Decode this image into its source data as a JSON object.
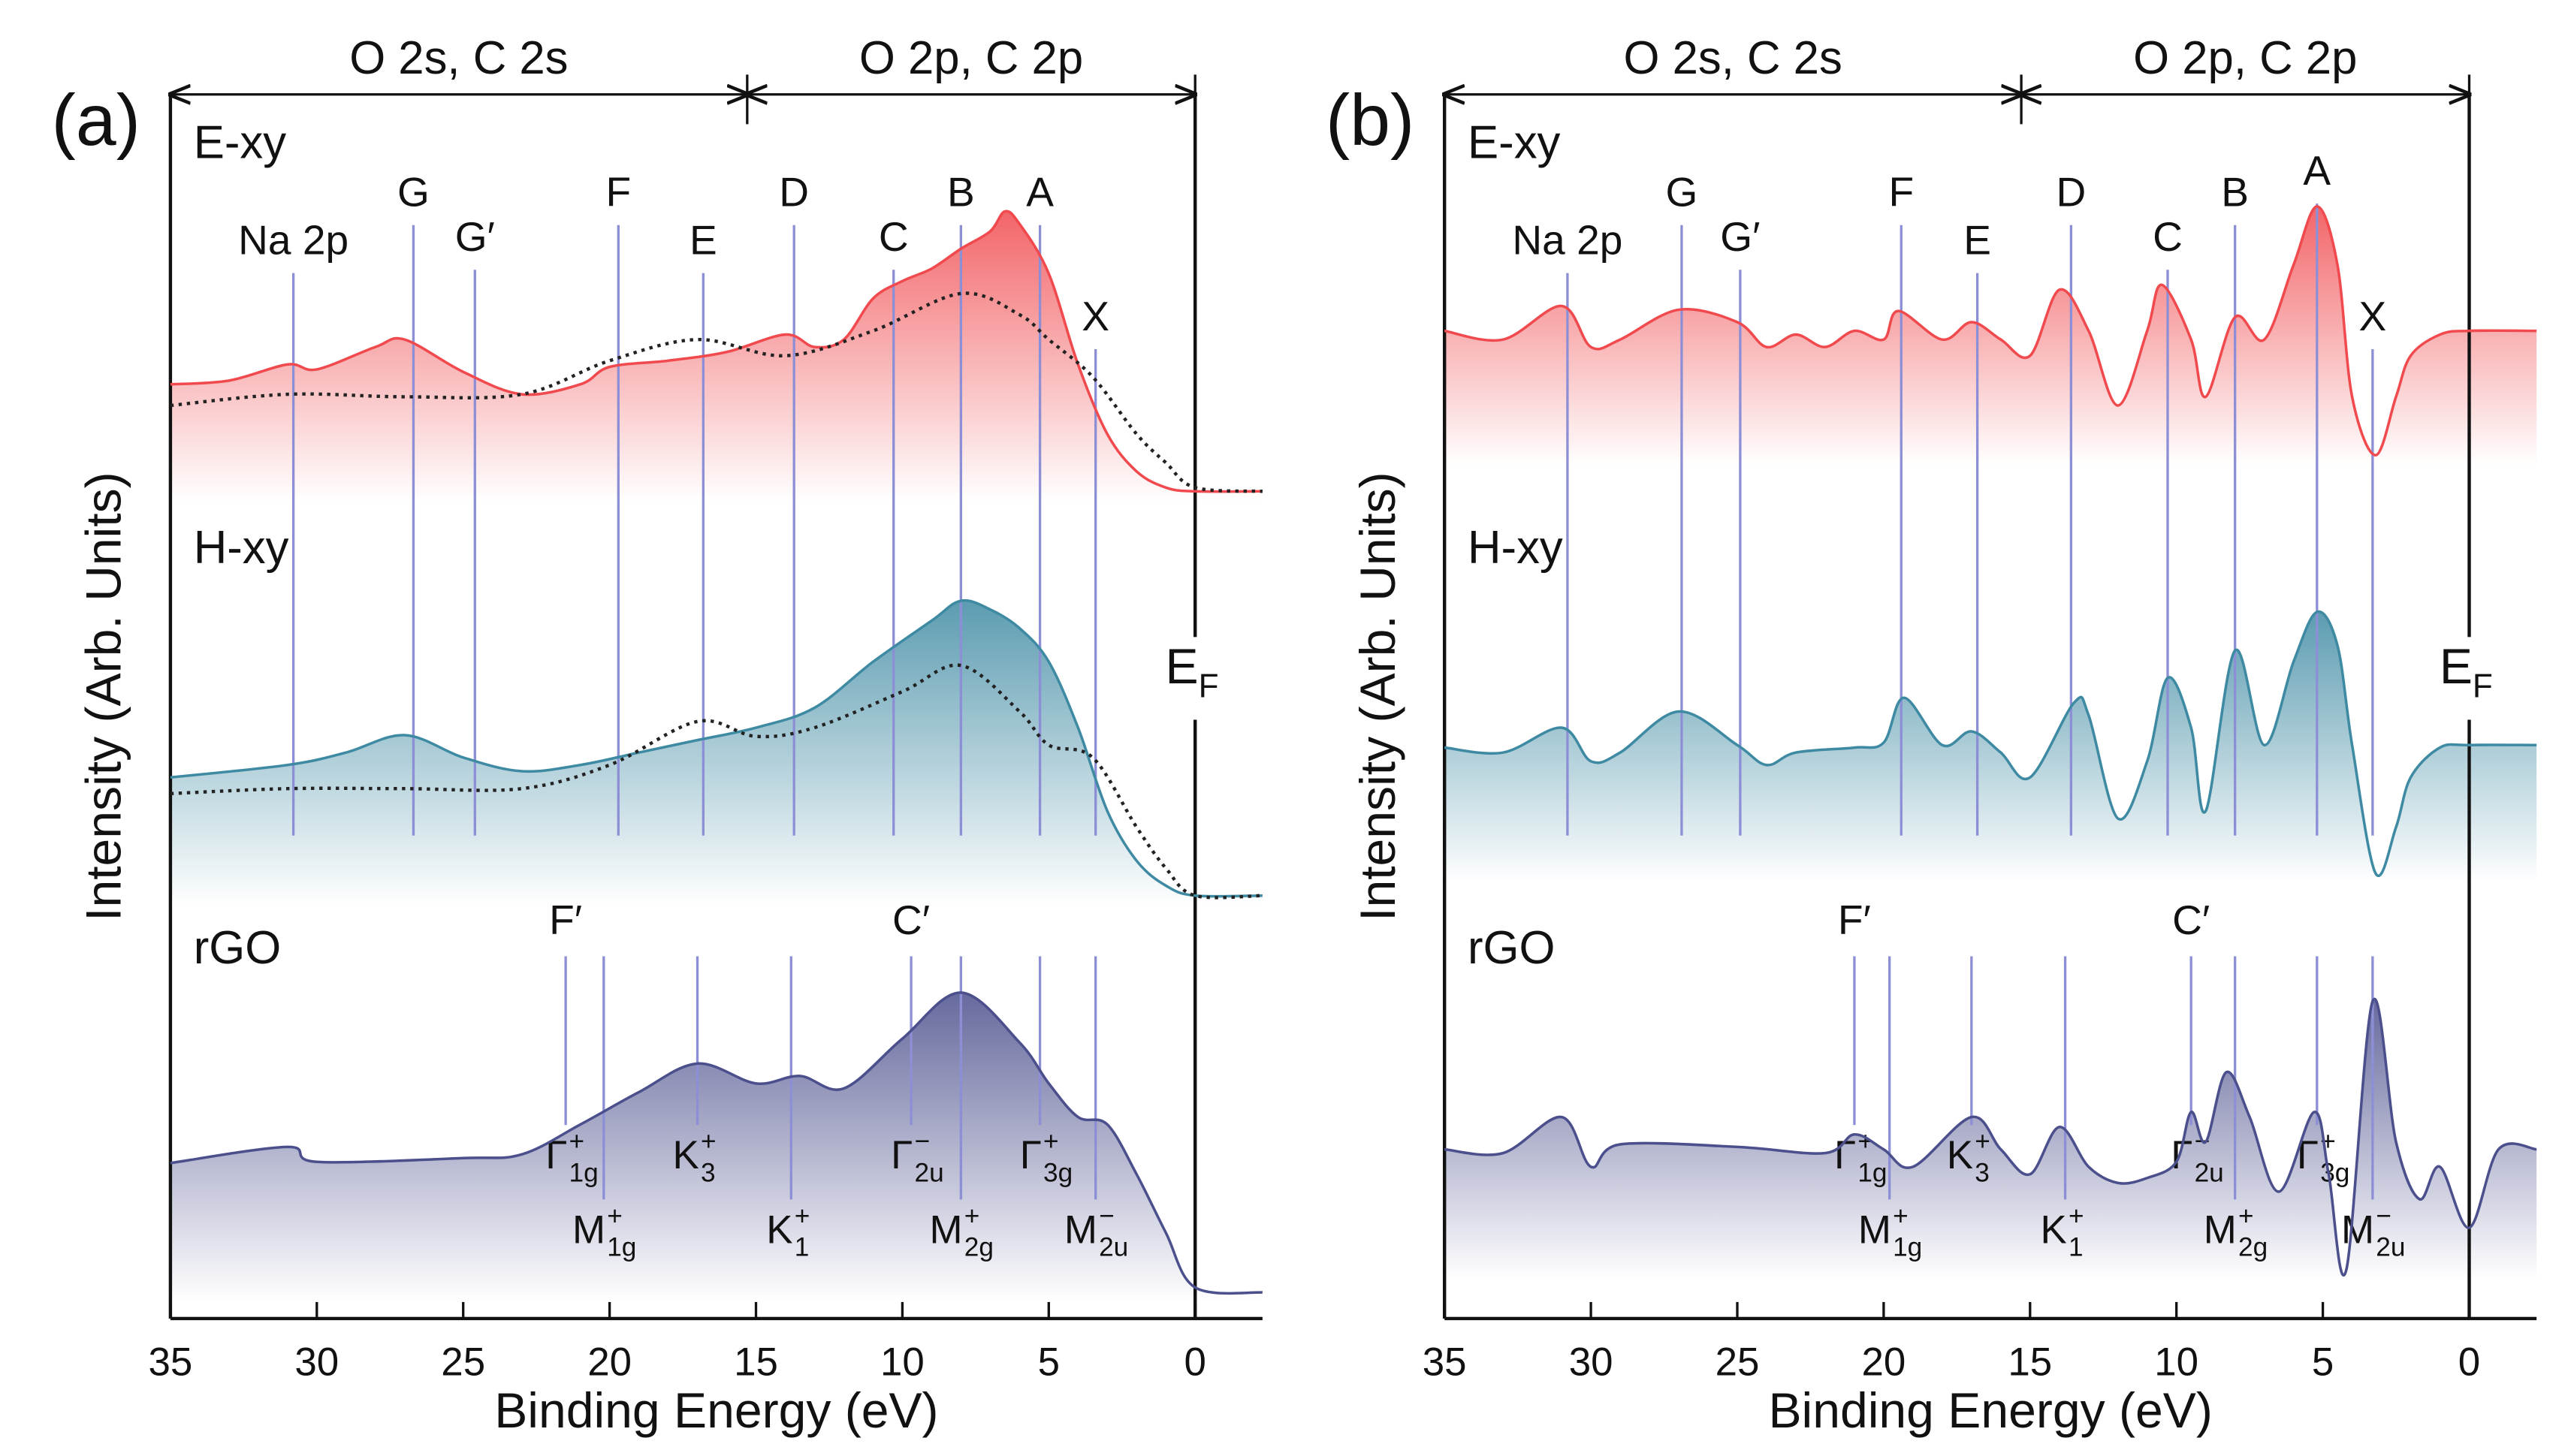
{
  "chart_data": [
    {
      "type": "line",
      "title": "(a)",
      "xlabel": "Binding Energy (eV)",
      "ylabel": "Intensity (Arb. Units)",
      "xlim": [
        35,
        -2.3
      ],
      "ylim": [
        0,
        100
      ],
      "xticks": [
        35,
        30,
        25,
        20,
        15,
        10,
        5,
        0
      ],
      "regions": [
        {
          "label": "O 2s, C 2s",
          "from": 35,
          "to": 15.3
        },
        {
          "label": "O 2p, C 2p",
          "from": 15.3,
          "to": 0
        }
      ],
      "fermi": {
        "label": "E",
        "sub": "F",
        "x": 0
      },
      "peaks": [
        {
          "label": "Na 2p",
          "x": 30.8
        },
        {
          "label": "G",
          "x": 26.7
        },
        {
          "label": "G′",
          "x": 24.6
        },
        {
          "label": "F",
          "x": 19.7
        },
        {
          "label": "E",
          "x": 16.8
        },
        {
          "label": "D",
          "x": 13.7
        },
        {
          "label": "C",
          "x": 10.3
        },
        {
          "label": "B",
          "x": 8.0
        },
        {
          "label": "A",
          "x": 5.3
        },
        {
          "label": "X",
          "x": 3.4
        }
      ],
      "rgo_peaks": [
        {
          "label": "F′",
          "x": 21.5
        },
        {
          "label": "C′",
          "x": 9.7
        }
      ],
      "states": [
        {
          "symbol": "Γ",
          "sub": "1g",
          "sup": "+",
          "x": 21.5
        },
        {
          "symbol": "M",
          "sub": "1g",
          "sup": "+",
          "x": 20.2
        },
        {
          "symbol": "K",
          "sub": "3",
          "sup": "+",
          "x": 17.0
        },
        {
          "symbol": "K",
          "sub": "1",
          "sup": "+",
          "x": 13.8
        },
        {
          "symbol": "Γ",
          "sub": "2u",
          "sup": "−",
          "x": 9.7
        },
        {
          "symbol": "M",
          "sub": "2g",
          "sup": "+",
          "x": 8.0
        },
        {
          "symbol": "Γ",
          "sub": "3g",
          "sup": "+",
          "x": 5.3
        },
        {
          "symbol": "M",
          "sub": "2u",
          "sup": "−",
          "x": 3.4
        }
      ],
      "series": [
        {
          "name": "E-xy",
          "color": "#f04a4e",
          "fill": true,
          "x": [
            35,
            33,
            31,
            30,
            28,
            27,
            25,
            23,
            21,
            20,
            18,
            16,
            14,
            13,
            12,
            11,
            10,
            9,
            8,
            7,
            6.5,
            6,
            5,
            4,
            3,
            2,
            1,
            0,
            -2.3
          ],
          "values": [
            75.1,
            75.4,
            76.7,
            76.3,
            78.1,
            78.7,
            76.1,
            74.3,
            75.1,
            76.5,
            77.0,
            77.7,
            79.1,
            78.1,
            78.7,
            82.0,
            83.4,
            84.4,
            86.0,
            87.4,
            89.0,
            88.0,
            84.0,
            76.7,
            71.1,
            68.1,
            66.8,
            66.5,
            66.5
          ]
        },
        {
          "color": "#222222",
          "linestyle": "dotted",
          "x": [
            35,
            31,
            27,
            23,
            20,
            17,
            14,
            11,
            8,
            6,
            5,
            3.5,
            2,
            1,
            0,
            -2.3
          ],
          "values": [
            73.4,
            74.3,
            74.1,
            74.3,
            77.0,
            78.7,
            77.4,
            79.4,
            82.4,
            80.7,
            78.7,
            75.7,
            71.1,
            68.8,
            66.8,
            66.5
          ]
        },
        {
          "name": "H-xy",
          "color": "#3f8aa3",
          "fill": true,
          "x": [
            35,
            31,
            29,
            27,
            25,
            23,
            21,
            19,
            17,
            15,
            13,
            11,
            9,
            8,
            7,
            6,
            5,
            4,
            3,
            2,
            1,
            0,
            -2.3
          ],
          "values": [
            43.5,
            44.5,
            45.5,
            46.9,
            45.1,
            44.0,
            44.5,
            45.5,
            46.5,
            47.5,
            49.1,
            52.8,
            56.1,
            57.7,
            57.0,
            55.5,
            52.8,
            47.5,
            40.8,
            36.8,
            34.8,
            34.0,
            34.0
          ]
        },
        {
          "color": "#222222",
          "linestyle": "dotted",
          "x": [
            35,
            31,
            27,
            23,
            20,
            17,
            15,
            13,
            10,
            8,
            6,
            5,
            3.5,
            2,
            1,
            0,
            -2.3
          ],
          "values": [
            42.2,
            42.6,
            42.6,
            42.6,
            44.5,
            48.0,
            46.8,
            47.5,
            50.4,
            52.5,
            48.8,
            46.1,
            45.1,
            39.5,
            36.2,
            34.0,
            34.0
          ]
        },
        {
          "name": "rGO",
          "color": "#4b4f8c",
          "fill": true,
          "x": [
            35,
            31,
            30,
            25,
            23,
            21,
            19,
            17,
            15,
            13.5,
            12,
            10,
            8,
            6,
            5,
            4,
            3,
            2,
            1,
            0,
            -2.3
          ],
          "values": [
            12.5,
            13.8,
            12.6,
            12.9,
            13.2,
            15.6,
            18.2,
            20.5,
            18.9,
            19.5,
            18.5,
            22.5,
            26.2,
            22.2,
            18.9,
            16.2,
            15.6,
            11.6,
            6.9,
            2.5,
            2.1
          ]
        }
      ]
    },
    {
      "type": "line",
      "title": "(b)",
      "xlabel": "Binding Energy (eV)",
      "ylabel": "Intensity (Arb. Units)",
      "xlim": [
        35,
        -2.3
      ],
      "ylim": [
        0,
        100
      ],
      "xticks": [
        35,
        30,
        25,
        20,
        15,
        10,
        5,
        0
      ],
      "regions": [
        {
          "label": "O 2s, C 2s",
          "from": 35,
          "to": 15.3
        },
        {
          "label": "O 2p, C 2p",
          "from": 15.3,
          "to": 0
        }
      ],
      "fermi": {
        "label": "E",
        "sub": "F",
        "x": 0
      },
      "peaks": [
        {
          "label": "Na 2p",
          "x": 30.8
        },
        {
          "label": "G",
          "x": 26.9
        },
        {
          "label": "G′",
          "x": 24.9
        },
        {
          "label": "F",
          "x": 19.4
        },
        {
          "label": "E",
          "x": 16.8
        },
        {
          "label": "D",
          "x": 13.6
        },
        {
          "label": "C",
          "x": 10.3
        },
        {
          "label": "B",
          "x": 8.0
        },
        {
          "label": "A",
          "x": 5.2
        },
        {
          "label": "X",
          "x": 3.3
        }
      ],
      "rgo_peaks": [
        {
          "label": "F′",
          "x": 21.0
        },
        {
          "label": "C′",
          "x": 9.5
        }
      ],
      "states": [
        {
          "symbol": "Γ",
          "sub": "1g",
          "sup": "+",
          "x": 21.0
        },
        {
          "symbol": "M",
          "sub": "1g",
          "sup": "+",
          "x": 19.8
        },
        {
          "symbol": "K",
          "sub": "3",
          "sup": "+",
          "x": 17.0
        },
        {
          "symbol": "K",
          "sub": "1",
          "sup": "+",
          "x": 13.8
        },
        {
          "symbol": "Γ",
          "sub": "2u",
          "sup": "−",
          "x": 9.5
        },
        {
          "symbol": "M",
          "sub": "2g",
          "sup": "+",
          "x": 8.0
        },
        {
          "symbol": "Γ",
          "sub": "3g",
          "sup": "+",
          "x": 5.2
        },
        {
          "symbol": "M",
          "sub": "2u",
          "sup": "−",
          "x": 3.3
        }
      ],
      "series": [
        {
          "name": "E-xy",
          "color": "#f04a4e",
          "fill": true,
          "x": [
            35,
            33,
            31,
            30,
            29,
            27,
            25,
            24,
            23,
            22,
            21,
            20,
            19.5,
            18,
            17,
            16,
            15,
            14,
            13,
            12,
            11,
            10.5,
            9.5,
            9,
            8,
            7,
            6,
            5.2,
            4.5,
            4,
            3.2,
            2.5,
            2,
            1,
            0,
            -2.3
          ],
          "values": [
            79.4,
            78.7,
            81.4,
            78.1,
            78.7,
            81.1,
            80.1,
            78.1,
            79.1,
            78.1,
            79.4,
            78.7,
            81.0,
            78.7,
            80.1,
            78.7,
            77.4,
            82.7,
            79.4,
            73.4,
            79.4,
            83.1,
            78.7,
            74.1,
            80.5,
            78.7,
            84.7,
            89.4,
            84.7,
            74.1,
            69.4,
            74.1,
            77.4,
            79.1,
            79.4,
            79.4
          ]
        },
        {
          "name": "H-xy",
          "color": "#3f8aa3",
          "fill": true,
          "x": [
            35,
            33,
            31,
            30,
            29,
            27,
            25,
            24,
            23,
            21,
            20,
            19.3,
            18,
            17,
            16,
            15,
            13.5,
            13,
            12,
            11,
            10.3,
            9.5,
            9,
            8,
            7,
            6,
            5.2,
            4.5,
            4,
            3.2,
            2.5,
            2,
            1,
            0,
            -2.3
          ],
          "values": [
            45.9,
            45.5,
            47.5,
            44.8,
            45.5,
            48.8,
            46.1,
            44.5,
            45.5,
            45.9,
            46.3,
            49.9,
            46.1,
            47.2,
            45.5,
            43.5,
            49.5,
            48.5,
            40.2,
            44.8,
            51.5,
            47.5,
            40.8,
            53.7,
            46.1,
            52.8,
            56.8,
            54.1,
            46.1,
            35.8,
            39.5,
            43.5,
            45.9,
            46.1,
            46.1
          ]
        },
        {
          "name": "rGO",
          "color": "#4b4f8c",
          "fill": true,
          "x": [
            35,
            33,
            31,
            30,
            29,
            25,
            22,
            21,
            20,
            19,
            17,
            16,
            15,
            14,
            13,
            12,
            11,
            10,
            9.5,
            9,
            8.3,
            7.5,
            6.5,
            5.3,
            4.8,
            4.2,
            3.3,
            2.5,
            1.7,
            1,
            0,
            -1,
            -2.3
          ],
          "values": [
            13.6,
            13.3,
            16.2,
            12.2,
            14.0,
            13.8,
            13.3,
            14.8,
            13.6,
            12.2,
            16.2,
            13.6,
            11.6,
            15.4,
            12.2,
            10.9,
            11.3,
            12.6,
            16.6,
            14.2,
            19.8,
            16.2,
            10.2,
            16.6,
            11.6,
            3.9,
            25.5,
            14.2,
            9.6,
            12.2,
            7.3,
            13.6,
            13.6
          ]
        }
      ]
    }
  ]
}
